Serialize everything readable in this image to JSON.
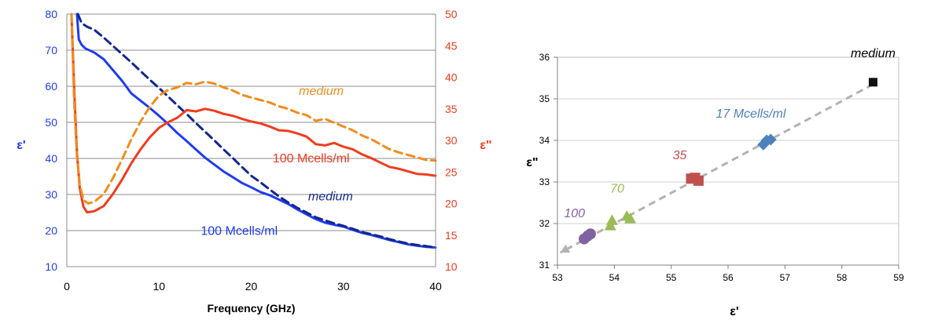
{
  "chart_data": [
    {
      "type": "line",
      "xlabel": "Frequency (GHz)",
      "ylabel_left": "ε'",
      "ylabel_right": "ε\"",
      "xlim": [
        0,
        40
      ],
      "ylim_left": [
        10,
        80
      ],
      "ylim_right": [
        10,
        50
      ],
      "x_ticks": [
        "0",
        "10",
        "20",
        "30",
        "40"
      ],
      "y_left_ticks": [
        "10",
        "20",
        "30",
        "40",
        "50",
        "60",
        "70",
        "80"
      ],
      "y_right_ticks": [
        "10",
        "15",
        "20",
        "25",
        "30",
        "35",
        "40",
        "45",
        "50"
      ],
      "grid": true,
      "colors": {
        "blue": "#1f3cf0",
        "navy": "#14288c",
        "red": "#f03c1e",
        "orange": "#f08c1e"
      },
      "series": [
        {
          "axis": "left",
          "style": "solid",
          "color": "#1f3cf0",
          "x": [
            1.1,
            1.3,
            1.6,
            2,
            3,
            4,
            5,
            6,
            7,
            8,
            9,
            10,
            11,
            12,
            13,
            14,
            15,
            16,
            17,
            18,
            19,
            20,
            21,
            22,
            23,
            24,
            25,
            26,
            27,
            28,
            29,
            30,
            31,
            32,
            33,
            34,
            35,
            36,
            37,
            38,
            39,
            40
          ],
          "y": [
            80,
            73,
            71.5,
            70.5,
            69.3,
            67.5,
            64.5,
            61.5,
            58,
            56,
            54,
            51.8,
            49.5,
            47,
            44.8,
            42.5,
            40.2,
            38.3,
            36.4,
            34.8,
            33.2,
            32,
            30.7,
            29.8,
            28.6,
            27.4,
            25.9,
            24.5,
            23.2,
            22.2,
            21.6,
            21.1,
            20.2,
            19.4,
            18.8,
            18.1,
            17.4,
            16.8,
            16.2,
            15.8,
            15.5,
            15.3
          ]
        },
        {
          "axis": "left",
          "style": "dashed",
          "color": "#14288c",
          "x": [
            1.2,
            1.6,
            2.2,
            3,
            4,
            5,
            6,
            7,
            8,
            9,
            10,
            11,
            12,
            13,
            14,
            15,
            16,
            17,
            18,
            19,
            20,
            21,
            22,
            23,
            24,
            25,
            26,
            27,
            28,
            29,
            30,
            31,
            32,
            33,
            34,
            35,
            36,
            37,
            38,
            39,
            40
          ],
          "y": [
            80,
            77.5,
            76.5,
            75.6,
            73.5,
            71.2,
            68.9,
            66.6,
            64.2,
            61.8,
            59.5,
            57.1,
            54.7,
            52.3,
            49.8,
            47.4,
            45,
            42.5,
            40.1,
            37.6,
            35.2,
            33.4,
            31.4,
            29.5,
            27.8,
            26.3,
            25,
            23.7,
            22.8,
            22,
            21.3,
            20.5,
            19.6,
            19,
            18.4,
            17.6,
            17,
            16.4,
            16,
            15.7,
            15.3
          ]
        },
        {
          "axis": "right",
          "style": "solid",
          "color": "#f03c1e",
          "x": [
            0.5,
            0.8,
            1.1,
            1.4,
            1.8,
            2.2,
            3,
            4,
            5,
            6,
            7,
            8,
            9,
            10,
            11,
            12,
            13,
            14,
            15,
            16,
            17,
            18,
            19,
            20,
            21,
            22,
            23,
            24,
            25,
            26,
            27,
            28,
            29,
            30,
            31,
            32,
            33,
            34,
            35,
            36,
            37,
            38,
            39,
            40
          ],
          "y": [
            50,
            38,
            28,
            22.5,
            19.5,
            18.6,
            18.8,
            19.6,
            21.5,
            23.8,
            26.4,
            28.6,
            30.5,
            32,
            32.9,
            33.6,
            34.8,
            34.6,
            35,
            34.7,
            34.2,
            33.9,
            33.4,
            33,
            32.7,
            32.2,
            31.6,
            31.5,
            31.1,
            30.6,
            29.4,
            29.2,
            29.6,
            29,
            28.6,
            27.8,
            27.2,
            26.5,
            25.8,
            25.5,
            25.1,
            24.7,
            24.6,
            24.4
          ]
        },
        {
          "axis": "right",
          "style": "dashed",
          "color": "#f08c1e",
          "x": [
            0.5,
            0.8,
            1.1,
            1.4,
            1.8,
            2.3,
            3,
            4,
            5,
            6,
            7,
            8,
            9,
            10,
            11,
            12,
            13,
            14,
            15,
            16,
            17,
            18,
            19,
            20,
            21,
            22,
            23,
            24,
            25,
            26,
            27,
            28,
            29,
            30,
            31,
            32,
            33,
            34,
            35,
            36,
            37,
            38,
            39,
            40
          ],
          "y": [
            50,
            36,
            27.5,
            23,
            20.6,
            20,
            20.3,
            21.5,
            24,
            27,
            30.2,
            33,
            35.3,
            37.1,
            38,
            38.4,
            39.1,
            38.9,
            39.3,
            39,
            38.4,
            37.9,
            37.2,
            36.8,
            36.4,
            36,
            35.4,
            35,
            34.4,
            34,
            33.1,
            33.4,
            32.8,
            32.2,
            31.6,
            30.8,
            30.2,
            29.4,
            28.6,
            28.1,
            27.7,
            27.3,
            26.9,
            26.8
          ]
        }
      ],
      "annotations": [
        {
          "text": "medium",
          "x": 27.6,
          "y_right": 37.2,
          "color": "#f08c1e",
          "italic": true
        },
        {
          "text": "100 Mcells/ml",
          "x": 26.5,
          "y_right": 26.5,
          "color": "#f03c1e",
          "italic": false
        },
        {
          "text": "medium",
          "x": 28.6,
          "y_left": 28.4,
          "color": "#14288c",
          "italic": true
        },
        {
          "text": "100 Mcells/ml",
          "x": 18.7,
          "y_left": 18.8,
          "color": "#1f3cf0",
          "italic": false
        }
      ]
    },
    {
      "type": "scatter",
      "xlabel": "ε'",
      "ylabel": "ε\"",
      "xlim": [
        53,
        59
      ],
      "ylim": [
        31,
        36
      ],
      "x_ticks": [
        "53",
        "54",
        "55",
        "56",
        "57",
        "58",
        "59"
      ],
      "y_ticks": [
        "31",
        "32",
        "33",
        "34",
        "35",
        "36"
      ],
      "grid": true,
      "trend_line": {
        "from": [
          58.55,
          35.35
        ],
        "to": [
          53.05,
          31.3
        ],
        "color": "#b3b3b3",
        "style": "dashed",
        "arrow": "end"
      },
      "groups": [
        {
          "label": "medium",
          "color": "#111111",
          "marker": "square",
          "points": [
            [
              58.55,
              35.4
            ]
          ]
        },
        {
          "label": "17 Mcells/ml",
          "color": "#4f81bd",
          "marker": "diamond",
          "points": [
            [
              56.62,
              33.9
            ],
            [
              56.68,
              34.0
            ],
            [
              56.75,
              34.02
            ]
          ]
        },
        {
          "label": "35",
          "color": "#c0504d",
          "marker": "square",
          "points": [
            [
              55.35,
              33.08
            ],
            [
              55.42,
              33.1
            ],
            [
              55.48,
              33.03
            ]
          ]
        },
        {
          "label": "70",
          "color": "#9bbb59",
          "marker": "triangle",
          "points": [
            [
              53.93,
              31.95
            ],
            [
              53.96,
              32.08
            ],
            [
              54.22,
              32.18
            ],
            [
              54.28,
              32.12
            ]
          ]
        },
        {
          "label": "100",
          "color": "#8064a2",
          "marker": "circle",
          "points": [
            [
              53.47,
              31.63
            ],
            [
              53.53,
              31.7
            ],
            [
              53.58,
              31.75
            ]
          ]
        }
      ],
      "labels": [
        {
          "text": "medium",
          "x": 58.55,
          "y": 36.0,
          "color": "#000000"
        },
        {
          "text": "17 Mcells/ml",
          "x": 56.4,
          "y": 34.55,
          "color": "#4f81bd"
        },
        {
          "text": "35",
          "x": 55.15,
          "y": 33.55,
          "color": "#c0504d"
        },
        {
          "text": "70",
          "x": 54.05,
          "y": 32.75,
          "color": "#9bbb59"
        },
        {
          "text": "100",
          "x": 53.3,
          "y": 32.15,
          "color": "#8064a2"
        }
      ]
    }
  ]
}
